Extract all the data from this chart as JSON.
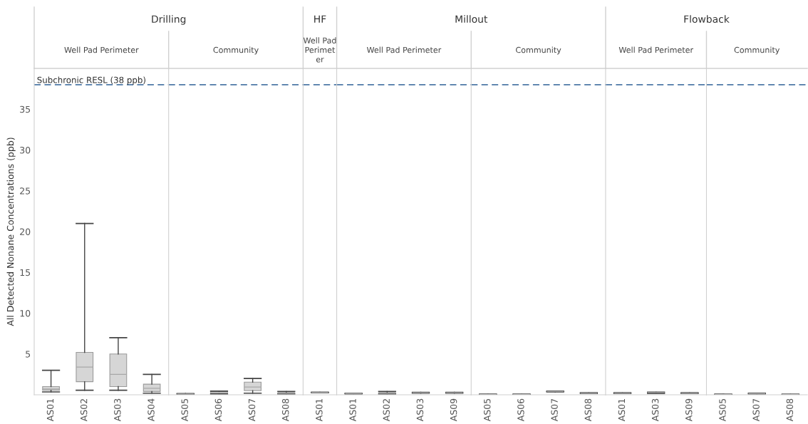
{
  "chart_data": [
    {
      "type": "box",
      "title": "Drilling",
      "subtitle": "Well Pad Perimeter",
      "ylabel": "All Detected Nonane Concentrations (ppb)",
      "categories": [
        "AS01",
        "AS02",
        "AS03",
        "AS04"
      ],
      "color": "#d6d6d6",
      "ylim": [
        0,
        40
      ],
      "yticks": [
        5,
        10,
        15,
        20,
        25,
        30,
        35
      ],
      "boxes": [
        {
          "low": 0.35,
          "q1": 0.55,
          "median": 0.7,
          "q3": 1.0,
          "high": 3.0
        },
        {
          "low": 0.55,
          "q1": 1.6,
          "median": 3.4,
          "q3": 5.2,
          "high": 21.0
        },
        {
          "low": 0.55,
          "q1": 1.0,
          "median": 2.5,
          "q3": 5.0,
          "high": 7.0
        },
        {
          "low": 0.2,
          "q1": 0.4,
          "median": 0.8,
          "q3": 1.3,
          "high": 2.5
        }
      ],
      "ref_lines": [
        {
          "axis": "y",
          "value": 38,
          "label": "Subchronic RESL (38 ppb)",
          "color": "#4e79a7",
          "line_style": "dashed"
        }
      ]
    },
    {
      "type": "box",
      "subtitle": "Community",
      "categories": [
        "AS05",
        "AS06",
        "AS07",
        "AS08"
      ],
      "color": "#d6d6d6",
      "ylim": [
        0,
        40
      ],
      "yticks": [
        5,
        10,
        15,
        20,
        25,
        30,
        35
      ],
      "tick_labels": "x",
      "boxes": [
        {
          "low": 0.05,
          "q1": 0.08,
          "median": 0.1,
          "q3": 0.12,
          "high": 0.15
        },
        {
          "low": 0.1,
          "q1": 0.15,
          "median": 0.25,
          "q3": 0.4,
          "high": 0.45
        },
        {
          "low": 0.2,
          "q1": 0.5,
          "median": 0.95,
          "q3": 1.55,
          "high": 2.0
        },
        {
          "low": 0.1,
          "q1": 0.15,
          "median": 0.2,
          "q3": 0.25,
          "high": 0.4
        }
      ],
      "ref_lines": [
        {
          "axis": "y",
          "value": 38,
          "color": "#4e79a7",
          "line_style": "dashed"
        }
      ]
    },
    {
      "type": "box",
      "title": "HF",
      "subtitle": "Well Pad\nPerimet\ner",
      "categories": [
        "AS01"
      ],
      "color": "#d6d6d6",
      "ylim": [
        0,
        40
      ],
      "yticks": [
        5,
        10,
        15,
        20,
        25,
        30,
        35
      ],
      "tick_labels": "x",
      "boxes": [
        {
          "low": 0.25,
          "q1": 0.27,
          "median": 0.28,
          "q3": 0.3,
          "high": 0.32
        }
      ],
      "ref_lines": [
        {
          "axis": "y",
          "value": 38,
          "color": "#4e79a7",
          "line_style": "dashed"
        }
      ]
    },
    {
      "type": "box",
      "title": "Millout",
      "subtitle": "Well Pad Perimeter",
      "categories": [
        "AS01",
        "AS02",
        "AS03",
        "AS09"
      ],
      "color": "#d6d6d6",
      "ylim": [
        0,
        40
      ],
      "yticks": [
        5,
        10,
        15,
        20,
        25,
        30,
        35
      ],
      "tick_labels": "x",
      "boxes": [
        {
          "low": 0.1,
          "q1": 0.12,
          "median": 0.15,
          "q3": 0.18,
          "high": 0.2
        },
        {
          "low": 0.1,
          "q1": 0.15,
          "median": 0.2,
          "q3": 0.25,
          "high": 0.4
        },
        {
          "low": 0.2,
          "q1": 0.22,
          "median": 0.25,
          "q3": 0.28,
          "high": 0.3
        },
        {
          "low": 0.2,
          "q1": 0.22,
          "median": 0.25,
          "q3": 0.28,
          "high": 0.3
        }
      ],
      "ref_lines": [
        {
          "axis": "y",
          "value": 38,
          "color": "#4e79a7",
          "line_style": "dashed"
        }
      ]
    },
    {
      "type": "box",
      "subtitle": "Community",
      "categories": [
        "AS05",
        "AS06",
        "AS07",
        "AS08"
      ],
      "color": "#d6d6d6",
      "ylim": [
        0,
        40
      ],
      "yticks": [
        5,
        10,
        15,
        20,
        25,
        30,
        35
      ],
      "tick_labels": "x",
      "boxes": [
        {
          "low": 0.03,
          "q1": 0.04,
          "median": 0.05,
          "q3": 0.06,
          "high": 0.07
        },
        {
          "low": 0.03,
          "q1": 0.04,
          "median": 0.05,
          "q3": 0.06,
          "high": 0.07
        },
        {
          "low": 0.35,
          "q1": 0.37,
          "median": 0.4,
          "q3": 0.42,
          "high": 0.45
        },
        {
          "low": 0.15,
          "q1": 0.17,
          "median": 0.2,
          "q3": 0.22,
          "high": 0.25
        }
      ],
      "ref_lines": [
        {
          "axis": "y",
          "value": 38,
          "color": "#4e79a7",
          "line_style": "dashed"
        }
      ]
    },
    {
      "type": "box",
      "title": "Flowback",
      "subtitle": "Well Pad Perimeter",
      "categories": [
        "AS01",
        "AS03",
        "AS09"
      ],
      "color": "#d6d6d6",
      "ylim": [
        0,
        40
      ],
      "yticks": [
        5,
        10,
        15,
        20,
        25,
        30,
        35
      ],
      "tick_labels": "x",
      "boxes": [
        {
          "low": 0.15,
          "q1": 0.17,
          "median": 0.2,
          "q3": 0.22,
          "high": 0.25
        },
        {
          "low": 0.15,
          "q1": 0.2,
          "median": 0.25,
          "q3": 0.3,
          "high": 0.32
        },
        {
          "low": 0.15,
          "q1": 0.17,
          "median": 0.2,
          "q3": 0.22,
          "high": 0.25
        }
      ],
      "ref_lines": [
        {
          "axis": "y",
          "value": 38,
          "color": "#4e79a7",
          "line_style": "dashed"
        }
      ]
    },
    {
      "type": "box",
      "subtitle": "Community",
      "categories": [
        "AS05",
        "AS07",
        "AS08"
      ],
      "color": "#d6d6d6",
      "ylim": [
        0,
        40
      ],
      "yticks": [
        5,
        10,
        15,
        20,
        25,
        30,
        35
      ],
      "tick_labels": "x",
      "boxes": [
        {
          "low": 0.03,
          "q1": 0.04,
          "median": 0.05,
          "q3": 0.06,
          "high": 0.07
        },
        {
          "low": 0.1,
          "q1": 0.12,
          "median": 0.15,
          "q3": 0.18,
          "high": 0.2
        },
        {
          "low": 0.03,
          "q1": 0.04,
          "median": 0.05,
          "q3": 0.06,
          "high": 0.07
        }
      ],
      "ref_lines": [
        {
          "axis": "y",
          "value": 38,
          "color": "#4e79a7",
          "line_style": "dashed"
        }
      ]
    }
  ]
}
